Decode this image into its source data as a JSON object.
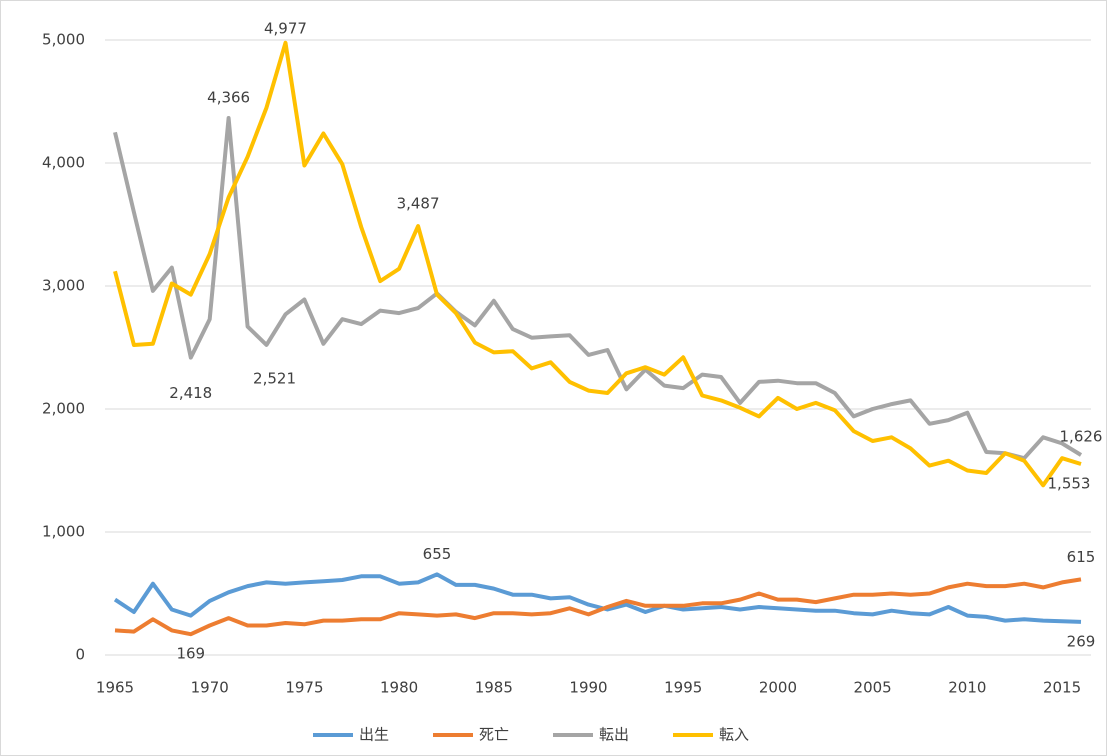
{
  "chart_data": {
    "type": "line",
    "x": [
      1965,
      1966,
      1967,
      1968,
      1969,
      1970,
      1971,
      1972,
      1973,
      1974,
      1975,
      1976,
      1977,
      1978,
      1979,
      1980,
      1981,
      1982,
      1983,
      1984,
      1985,
      1986,
      1987,
      1988,
      1989,
      1990,
      1991,
      1992,
      1993,
      1994,
      1995,
      1996,
      1997,
      1998,
      1999,
      2000,
      2001,
      2002,
      2003,
      2004,
      2005,
      2006,
      2007,
      2008,
      2009,
      2010,
      2011,
      2012,
      2013,
      2014,
      2015,
      2016
    ],
    "xlim": [
      1965,
      2016
    ],
    "xticks": [
      1965,
      1970,
      1975,
      1980,
      1985,
      1990,
      1995,
      2000,
      2005,
      2010,
      2015
    ],
    "ylim": [
      0,
      5000
    ],
    "yticks": [
      0,
      {
        "value": 1000,
        "label": "1,000"
      },
      {
        "value": 2000,
        "label": "2,000"
      },
      {
        "value": 3000,
        "label": "3,000"
      },
      {
        "value": 4000,
        "label": "4,000"
      },
      {
        "value": 5000,
        "label": "5,000"
      }
    ],
    "grid": true,
    "legend": "bottom",
    "series": [
      {
        "name": "出生",
        "color": "#5b9bd5",
        "values": [
          450,
          350,
          580,
          370,
          320,
          440,
          510,
          560,
          590,
          580,
          590,
          600,
          610,
          640,
          640,
          580,
          590,
          655,
          570,
          570,
          540,
          490,
          490,
          460,
          470,
          410,
          370,
          410,
          350,
          400,
          370,
          380,
          390,
          370,
          390,
          380,
          370,
          360,
          360,
          340,
          330,
          360,
          340,
          330,
          390,
          320,
          310,
          280,
          290,
          280,
          275,
          269
        ],
        "value_labels": [
          null,
          null,
          null,
          null,
          null,
          null,
          null,
          null,
          null,
          null,
          null,
          null,
          null,
          null,
          null,
          null,
          null,
          "655",
          null,
          null,
          null,
          null,
          null,
          null,
          null,
          null,
          null,
          null,
          null,
          null,
          null,
          null,
          null,
          null,
          null,
          null,
          null,
          null,
          null,
          null,
          null,
          null,
          null,
          null,
          null,
          null,
          null,
          null,
          null,
          null,
          null,
          "269"
        ]
      },
      {
        "name": "死亡",
        "color": "#ed7d31",
        "values": [
          200,
          190,
          290,
          200,
          169,
          240,
          300,
          240,
          240,
          260,
          250,
          280,
          280,
          290,
          290,
          340,
          330,
          320,
          330,
          300,
          340,
          340,
          330,
          340,
          380,
          330,
          390,
          440,
          400,
          400,
          400,
          420,
          420,
          450,
          500,
          450,
          450,
          430,
          460,
          490,
          490,
          500,
          490,
          500,
          550,
          580,
          560,
          560,
          580,
          550,
          590,
          615
        ],
        "value_labels": [
          null,
          null,
          null,
          null,
          "169",
          null,
          null,
          null,
          null,
          null,
          null,
          null,
          null,
          null,
          null,
          null,
          null,
          null,
          null,
          null,
          null,
          null,
          null,
          null,
          null,
          null,
          null,
          null,
          null,
          null,
          null,
          null,
          null,
          null,
          null,
          null,
          null,
          null,
          null,
          null,
          null,
          null,
          null,
          null,
          null,
          null,
          null,
          null,
          null,
          null,
          null,
          "615"
        ]
      },
      {
        "name": "転出",
        "color": "#a5a5a5",
        "values": [
          4250,
          3600,
          2960,
          3150,
          2418,
          2730,
          4366,
          2670,
          2521,
          2770,
          2890,
          2530,
          2730,
          2690,
          2800,
          2780,
          2820,
          2940,
          2790,
          2680,
          2880,
          2650,
          2580,
          2590,
          2600,
          2440,
          2480,
          2160,
          2320,
          2190,
          2170,
          2280,
          2260,
          2050,
          2220,
          2230,
          2210,
          2210,
          2130,
          1940,
          2000,
          2040,
          2070,
          1880,
          1910,
          1970,
          1650,
          1640,
          1600,
          1770,
          1720,
          1626
        ],
        "value_labels": [
          null,
          null,
          null,
          null,
          "2,418",
          null,
          "4,366",
          null,
          "2,521",
          null,
          null,
          null,
          null,
          null,
          null,
          null,
          null,
          null,
          null,
          null,
          null,
          null,
          null,
          null,
          null,
          null,
          null,
          null,
          null,
          null,
          null,
          null,
          null,
          null,
          null,
          null,
          null,
          null,
          null,
          null,
          null,
          null,
          null,
          null,
          null,
          null,
          null,
          null,
          null,
          null,
          null,
          "1,626"
        ]
      },
      {
        "name": "転入",
        "color": "#ffc000",
        "values": [
          3120,
          2520,
          2530,
          3020,
          2930,
          3260,
          3720,
          4050,
          4450,
          4977,
          3980,
          4240,
          3990,
          3480,
          3040,
          3140,
          3487,
          2930,
          2780,
          2540,
          2460,
          2470,
          2330,
          2380,
          2220,
          2150,
          2130,
          2290,
          2340,
          2280,
          2420,
          2110,
          2070,
          2010,
          1940,
          2090,
          2000,
          2050,
          1990,
          1820,
          1740,
          1770,
          1680,
          1540,
          1580,
          1500,
          1480,
          1640,
          1580,
          1380,
          1600,
          1553
        ],
        "value_labels": [
          null,
          null,
          null,
          null,
          null,
          null,
          null,
          null,
          null,
          "4,977",
          null,
          null,
          null,
          null,
          null,
          null,
          "3,487",
          null,
          null,
          null,
          null,
          null,
          null,
          null,
          null,
          null,
          null,
          null,
          null,
          null,
          null,
          null,
          null,
          null,
          null,
          null,
          null,
          null,
          null,
          null,
          null,
          null,
          null,
          null,
          null,
          null,
          null,
          null,
          null,
          null,
          null,
          "1,553"
        ]
      }
    ]
  }
}
